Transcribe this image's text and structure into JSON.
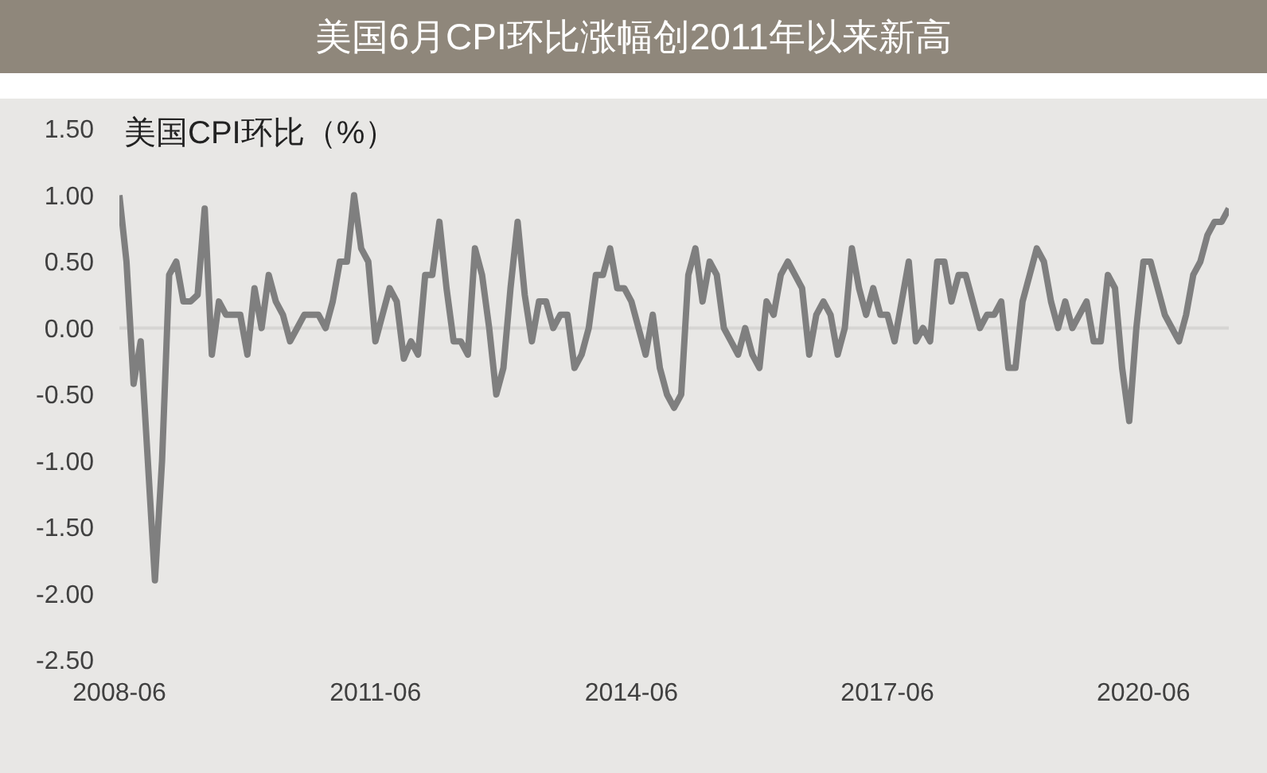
{
  "chart_data": {
    "type": "line",
    "title": "美国6月CPI环比涨幅创2011年以来新高",
    "ylabel": "美国CPI环比（%）",
    "x": [
      "2008-06",
      "2008-07",
      "2008-08",
      "2008-09",
      "2008-10",
      "2008-11",
      "2008-12",
      "2009-01",
      "2009-02",
      "2009-03",
      "2009-04",
      "2009-05",
      "2009-06",
      "2009-07",
      "2009-08",
      "2009-09",
      "2009-10",
      "2009-11",
      "2009-12",
      "2010-01",
      "2010-02",
      "2010-03",
      "2010-04",
      "2010-05",
      "2010-06",
      "2010-07",
      "2010-08",
      "2010-09",
      "2010-10",
      "2010-11",
      "2010-12",
      "2011-01",
      "2011-02",
      "2011-03",
      "2011-04",
      "2011-05",
      "2011-06",
      "2011-07",
      "2011-08",
      "2011-09",
      "2011-10",
      "2011-11",
      "2011-12",
      "2012-01",
      "2012-02",
      "2012-03",
      "2012-04",
      "2012-05",
      "2012-06",
      "2012-07",
      "2012-08",
      "2012-09",
      "2012-10",
      "2012-11",
      "2012-12",
      "2013-01",
      "2013-02",
      "2013-03",
      "2013-04",
      "2013-05",
      "2013-06",
      "2013-07",
      "2013-08",
      "2013-09",
      "2013-10",
      "2013-11",
      "2013-12",
      "2014-01",
      "2014-02",
      "2014-03",
      "2014-04",
      "2014-05",
      "2014-06",
      "2014-07",
      "2014-08",
      "2014-09",
      "2014-10",
      "2014-11",
      "2014-12",
      "2015-01",
      "2015-02",
      "2015-03",
      "2015-04",
      "2015-05",
      "2015-06",
      "2015-07",
      "2015-08",
      "2015-09",
      "2015-10",
      "2015-11",
      "2015-12",
      "2016-01",
      "2016-02",
      "2016-03",
      "2016-04",
      "2016-05",
      "2016-06",
      "2016-07",
      "2016-08",
      "2016-09",
      "2016-10",
      "2016-11",
      "2016-12",
      "2017-01",
      "2017-02",
      "2017-03",
      "2017-04",
      "2017-05",
      "2017-06",
      "2017-07",
      "2017-08",
      "2017-09",
      "2017-10",
      "2017-11",
      "2017-12",
      "2018-01",
      "2018-02",
      "2018-03",
      "2018-04",
      "2018-05",
      "2018-06",
      "2018-07",
      "2018-08",
      "2018-09",
      "2018-10",
      "2018-11",
      "2018-12",
      "2019-01",
      "2019-02",
      "2019-03",
      "2019-04",
      "2019-05",
      "2019-06",
      "2019-07",
      "2019-08",
      "2019-09",
      "2019-10",
      "2019-11",
      "2019-12",
      "2020-01",
      "2020-02",
      "2020-03",
      "2020-04",
      "2020-05",
      "2020-06",
      "2020-07",
      "2020-08",
      "2020-09",
      "2020-10",
      "2020-11",
      "2020-12",
      "2021-01",
      "2021-02",
      "2021-03",
      "2021-04",
      "2021-05",
      "2021-06"
    ],
    "series": [
      {
        "color": "#7f7f7f",
        "values": [
          1.0,
          0.5,
          -0.42,
          -0.1,
          -1.0,
          -1.9,
          -1.0,
          0.4,
          0.5,
          0.2,
          0.2,
          0.25,
          0.9,
          -0.2,
          0.2,
          0.1,
          0.1,
          0.1,
          -0.2,
          0.3,
          0.0,
          0.4,
          0.2,
          0.1,
          -0.1,
          0.0,
          0.1,
          0.1,
          0.1,
          0.0,
          0.2,
          0.5,
          0.5,
          1.0,
          0.6,
          0.5,
          -0.1,
          0.1,
          0.3,
          0.2,
          -0.23,
          -0.1,
          -0.2,
          0.4,
          0.4,
          0.8,
          0.3,
          -0.1,
          -0.1,
          -0.2,
          0.6,
          0.4,
          0.0,
          -0.5,
          -0.3,
          0.3,
          0.8,
          0.25,
          -0.1,
          0.2,
          0.2,
          0.0,
          0.1,
          0.1,
          -0.3,
          -0.2,
          0.0,
          0.4,
          0.4,
          0.6,
          0.3,
          0.3,
          0.2,
          0.0,
          -0.2,
          0.1,
          -0.3,
          -0.5,
          -0.6,
          -0.5,
          0.4,
          0.6,
          0.2,
          0.5,
          0.4,
          0.0,
          -0.1,
          -0.2,
          0.0,
          -0.2,
          -0.3,
          0.2,
          0.1,
          0.4,
          0.5,
          0.4,
          0.3,
          -0.2,
          0.1,
          0.2,
          0.1,
          -0.2,
          0.0,
          0.6,
          0.3,
          0.1,
          0.3,
          0.1,
          0.1,
          -0.1,
          0.2,
          0.5,
          -0.1,
          0.0,
          -0.1,
          0.5,
          0.5,
          0.2,
          0.4,
          0.4,
          0.2,
          0.0,
          0.1,
          0.1,
          0.2,
          -0.3,
          -0.3,
          0.2,
          0.4,
          0.6,
          0.5,
          0.2,
          0.0,
          0.2,
          0.0,
          0.1,
          0.2,
          -0.1,
          -0.1,
          0.4,
          0.3,
          -0.3,
          -0.7,
          0.0,
          0.5,
          0.5,
          0.3,
          0.1,
          0.0,
          -0.1,
          0.1,
          0.4,
          0.5,
          0.7,
          0.8,
          0.8,
          0.9
        ]
      }
    ],
    "xlim": [
      "2008-06",
      "2021-06"
    ],
    "xticks": [
      "2008-06",
      "2011-06",
      "2014-06",
      "2017-06",
      "2020-06"
    ],
    "ylim": [
      -2.5,
      1.5
    ],
    "yticks": [
      {
        "value": -2.5,
        "label": "-2.50"
      },
      {
        "value": -2.0,
        "label": "-2.00"
      },
      {
        "value": -1.5,
        "label": "-1.50"
      },
      {
        "value": -1.0,
        "label": "-1.00"
      },
      {
        "value": -0.5,
        "label": "-0.50"
      },
      {
        "value": 0,
        "label": "0.00"
      },
      {
        "value": 0.5,
        "label": "0.50"
      },
      {
        "value": 1.0,
        "label": "1.00"
      },
      {
        "value": 1.5,
        "label": "1.50"
      }
    ],
    "ref_lines": [
      {
        "axis": "y",
        "value": 0,
        "color": "#d6d5d3"
      }
    ],
    "grid": false,
    "legend": false,
    "marker": "none",
    "line_style": "solid"
  }
}
